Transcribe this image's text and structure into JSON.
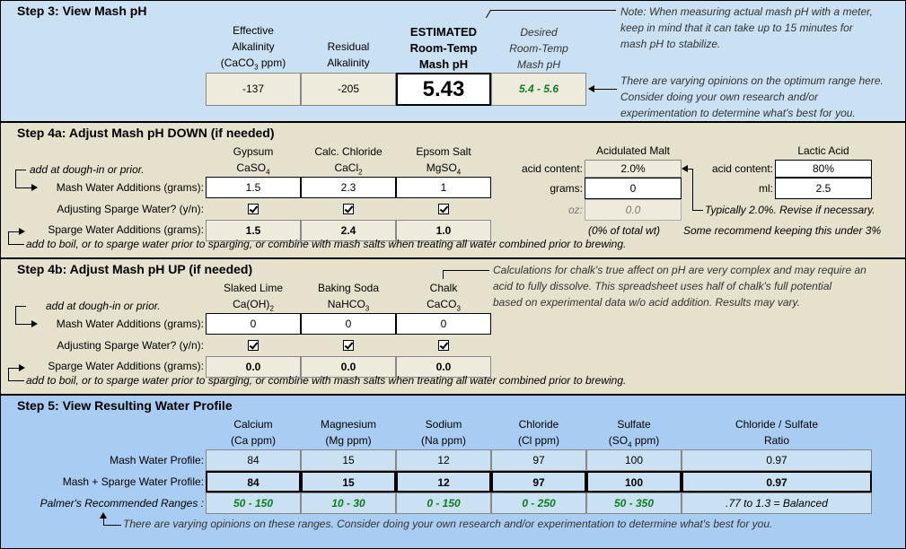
{
  "step3": {
    "title": "Step 3: View Mash pH",
    "col_effective": [
      "Effective",
      "Alkalinity",
      "(CaCO3 ppm)"
    ],
    "col_residual": [
      "Residual",
      "Alkalinity"
    ],
    "col_estimated": [
      "ESTIMATED",
      "Room-Temp",
      "Mash pH"
    ],
    "col_desired": [
      "Desired",
      "Room-Temp",
      "Mash pH"
    ],
    "effective_value": "-137",
    "residual_value": "-205",
    "estimated_value": "5.43",
    "desired_value": "5.4 - 5.6",
    "note_top": [
      "Note: When measuring actual mash pH with a meter,",
      "keep in mind that it can take up to 15 minutes for",
      "mash pH to stabilize."
    ],
    "note_bottom": [
      "There are varying opinions on the optimum range here.",
      "Consider doing your own research and/or",
      "experimentation to determine what's best for you."
    ]
  },
  "step4a": {
    "title": "Step 4a: Adjust Mash pH DOWN (if needed)",
    "salts": [
      {
        "name": "Gypsum",
        "formula": "CaSO4",
        "mash": "1.5",
        "sparge": "1.5"
      },
      {
        "name": "Calc. Chloride",
        "formula": "CaCl2",
        "mash": "2.3",
        "sparge": "2.4"
      },
      {
        "name": "Epsom Salt",
        "formula": "MgSO4",
        "mash": "1",
        "sparge": "1.0"
      }
    ],
    "dough_in_label": "add at dough-in or prior.",
    "mash_label": "Mash Water Additions (grams):",
    "adjust_label": "Adjusting Sparge Water? (y/n):",
    "sparge_label": "Sparge Water Additions (grams):",
    "bottom_note": "add to boil, or to sparge water prior to sparging, or combine with mash salts when treating all water combined prior to brewing.",
    "acid_malt": {
      "title": "Acidulated Malt",
      "content_label": "acid content:",
      "content_value": "2.0%",
      "grams_label": "grams:",
      "grams_value": "0",
      "oz_label": "oz:",
      "oz_value": "0.0",
      "pct_note": "(0% of total wt)",
      "typical_note": "Typically 2.0%. Revise if necessary."
    },
    "lactic": {
      "title": "Lactic Acid",
      "content_label": "acid content:",
      "content_value": "80%",
      "ml_label": "ml:",
      "ml_value": "2.5",
      "note": "Some recommend keeping this under 3%"
    }
  },
  "step4b": {
    "title": "Step 4b: Adjust Mash pH UP (if needed)",
    "salts": [
      {
        "name": "Slaked Lime",
        "formula": "Ca(OH)2",
        "mash": "0",
        "sparge": "0.0"
      },
      {
        "name": "Baking Soda",
        "formula": "NaHCO3",
        "mash": "0",
        "sparge": "0.0"
      },
      {
        "name": "Chalk",
        "formula": "CaCO3",
        "mash": "0",
        "sparge": "0.0"
      }
    ],
    "dough_in_label": "add at dough-in or prior.",
    "mash_label": "Mash Water Additions (grams):",
    "adjust_label": "Adjusting Sparge Water? (y/n):",
    "sparge_label": "Sparge Water Additions (grams):",
    "bottom_note": "add to boil, or to sparge water prior to sparging, or combine with mash salts when treating all water combined prior to brewing.",
    "chalk_note": [
      "Calculations for chalk's true affect on pH are very complex and may require an",
      "acid to fully dissolve.  This spreadsheet uses half of chalk's full potential",
      "based on experimental data w/o acid addition.  Results may vary."
    ]
  },
  "step5": {
    "title": "Step 5: View Resulting Water Profile",
    "columns": [
      {
        "name": "Calcium",
        "unit": "(Ca ppm)"
      },
      {
        "name": "Magnesium",
        "unit": "(Mg ppm)"
      },
      {
        "name": "Sodium",
        "unit": "(Na ppm)"
      },
      {
        "name": "Chloride",
        "unit": "(Cl ppm)"
      },
      {
        "name": "Sulfate",
        "unit": "(SO4 ppm)"
      },
      {
        "name": "Chloride / Sulfate",
        "unit": "Ratio"
      }
    ],
    "mash_label": "Mash Water Profile:",
    "mash_values": [
      "84",
      "15",
      "12",
      "97",
      "100",
      "0.97"
    ],
    "combined_label": "Mash + Sparge Water Profile:",
    "combined_values": [
      "84",
      "15",
      "12",
      "97",
      "100",
      "0.97"
    ],
    "palmer_label": "Palmer's Recommended Ranges :",
    "palmer_values": [
      "50 - 150",
      "10 - 30",
      "0 - 150",
      "0 - 250",
      "50 - 350",
      ".77 to 1.3 = Balanced"
    ],
    "note": "There are varying opinions on these ranges. Consider doing your own research and/or experimentation to determine what's best for you."
  }
}
